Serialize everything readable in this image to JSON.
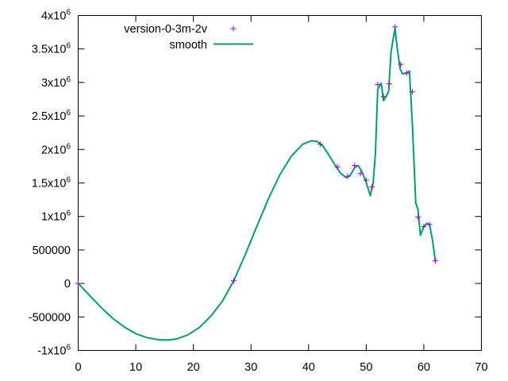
{
  "chart_data": {
    "type": "line",
    "title": "",
    "xlabel": "",
    "ylabel": "",
    "xlim": [
      0,
      70
    ],
    "ylim": [
      -1000000,
      4000000
    ],
    "x_ticks": [
      {
        "value": 0,
        "label": "0"
      },
      {
        "value": 10,
        "label": "10"
      },
      {
        "value": 20,
        "label": "20"
      },
      {
        "value": 30,
        "label": "30"
      },
      {
        "value": 40,
        "label": "40"
      },
      {
        "value": 50,
        "label": "50"
      },
      {
        "value": 60,
        "label": "60"
      },
      {
        "value": 70,
        "label": "70"
      }
    ],
    "y_ticks": [
      {
        "value": -1000000,
        "base": "-1x10",
        "exp": "6"
      },
      {
        "value": -500000,
        "base": "-500000",
        "exp": ""
      },
      {
        "value": 0,
        "base": "0",
        "exp": ""
      },
      {
        "value": 500000,
        "base": "500000",
        "exp": ""
      },
      {
        "value": 1000000,
        "base": "1x10",
        "exp": "6"
      },
      {
        "value": 1500000,
        "base": "1.5x10",
        "exp": "6"
      },
      {
        "value": 2000000,
        "base": "2x10",
        "exp": "6"
      },
      {
        "value": 2500000,
        "base": "2.5x10",
        "exp": "6"
      },
      {
        "value": 3000000,
        "base": "3x10",
        "exp": "6"
      },
      {
        "value": 3500000,
        "base": "3.5x10",
        "exp": "6"
      },
      {
        "value": 4000000,
        "base": "4x10",
        "exp": "6"
      }
    ],
    "grid": false,
    "legend_position": "top-left",
    "series": [
      {
        "name": "version-0-3m-2v",
        "style": "points",
        "marker": "+",
        "color": "#9400d3",
        "points": [
          [
            0,
            0
          ],
          [
            27,
            40000
          ],
          [
            42,
            2080000
          ],
          [
            45,
            1740000
          ],
          [
            46.8,
            1600000
          ],
          [
            48,
            1760000
          ],
          [
            49,
            1640000
          ],
          [
            50,
            1540000
          ],
          [
            51,
            1440000
          ],
          [
            52,
            2970000
          ],
          [
            53,
            2790000
          ],
          [
            54,
            2980000
          ],
          [
            55,
            3830000
          ],
          [
            56,
            3270000
          ],
          [
            57,
            3140000
          ],
          [
            58,
            2860000
          ],
          [
            59,
            990000
          ],
          [
            60,
            850000
          ],
          [
            61,
            880000
          ],
          [
            62,
            340000
          ]
        ]
      },
      {
        "name": "smooth",
        "style": "line",
        "color": "#009e73",
        "points": [
          [
            0,
            0
          ],
          [
            2,
            -180000
          ],
          [
            4,
            -360000
          ],
          [
            6,
            -520000
          ],
          [
            8,
            -650000
          ],
          [
            10,
            -750000
          ],
          [
            12,
            -810000
          ],
          [
            14,
            -840000
          ],
          [
            15.5,
            -845000
          ],
          [
            17,
            -830000
          ],
          [
            19,
            -770000
          ],
          [
            21,
            -660000
          ],
          [
            23,
            -490000
          ],
          [
            25,
            -270000
          ],
          [
            27,
            40000
          ],
          [
            29,
            430000
          ],
          [
            31,
            850000
          ],
          [
            33,
            1260000
          ],
          [
            35,
            1620000
          ],
          [
            37,
            1900000
          ],
          [
            39,
            2080000
          ],
          [
            40.5,
            2130000
          ],
          [
            41.5,
            2120000
          ],
          [
            42.5,
            2050000
          ],
          [
            43.5,
            1920000
          ],
          [
            44.5,
            1780000
          ],
          [
            45.5,
            1650000
          ],
          [
            46.5,
            1580000
          ],
          [
            47.2,
            1610000
          ],
          [
            48,
            1730000
          ],
          [
            48.6,
            1760000
          ],
          [
            49.2,
            1680000
          ],
          [
            50,
            1510000
          ],
          [
            50.7,
            1310000
          ],
          [
            51.2,
            1500000
          ],
          [
            51.6,
            1950000
          ],
          [
            52,
            2900000
          ],
          [
            52.6,
            2990000
          ],
          [
            53,
            2730000
          ],
          [
            53.5,
            2800000
          ],
          [
            53.9,
            2870000
          ],
          [
            54.3,
            3450000
          ],
          [
            55,
            3810000
          ],
          [
            55.4,
            3500000
          ],
          [
            55.9,
            3200000
          ],
          [
            56.3,
            3130000
          ],
          [
            57,
            3140000
          ],
          [
            57.5,
            3170000
          ],
          [
            58,
            2400000
          ],
          [
            58.6,
            1200000
          ],
          [
            59,
            1100000
          ],
          [
            59.4,
            720000
          ],
          [
            60,
            850000
          ],
          [
            60.6,
            900000
          ],
          [
            61,
            870000
          ],
          [
            61.5,
            650000
          ],
          [
            62,
            340000
          ]
        ]
      }
    ]
  }
}
